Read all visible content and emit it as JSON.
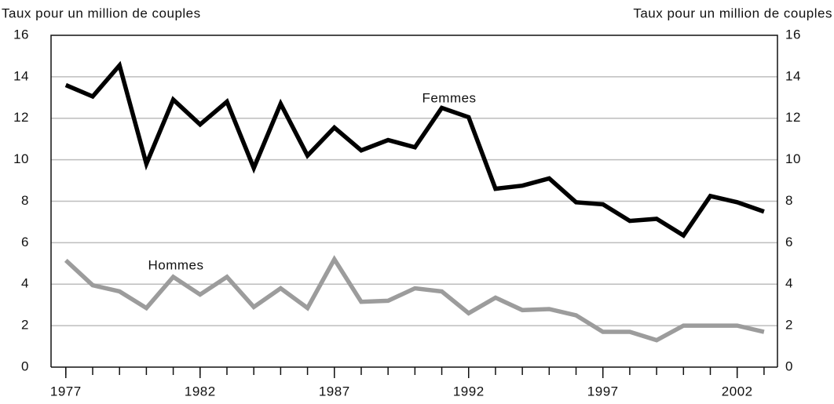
{
  "chart_data": {
    "type": "line",
    "y_label": "Taux pour un million de couples",
    "y2_label": "Taux pour un million de couples",
    "x": [
      1977,
      1978,
      1979,
      1980,
      1981,
      1982,
      1983,
      1984,
      1985,
      1986,
      1987,
      1988,
      1989,
      1990,
      1991,
      1992,
      1993,
      1994,
      1995,
      1996,
      1997,
      1998,
      1999,
      2000,
      2001,
      2002,
      2003
    ],
    "series": [
      {
        "name": "Femmes",
        "color": "#000000",
        "values": [
          13.6,
          13.05,
          14.55,
          9.8,
          12.9,
          11.7,
          12.8,
          9.6,
          12.7,
          10.2,
          11.55,
          10.45,
          10.95,
          10.6,
          12.5,
          12.05,
          8.6,
          8.75,
          9.1,
          7.95,
          7.85,
          7.05,
          7.15,
          6.35,
          8.25,
          7.95,
          7.5
        ]
      },
      {
        "name": "Hommes",
        "color": "#9c9c9c",
        "values": [
          5.15,
          3.95,
          3.65,
          2.85,
          4.35,
          3.5,
          4.35,
          2.9,
          3.8,
          2.85,
          5.2,
          3.15,
          3.2,
          3.8,
          3.65,
          2.6,
          3.35,
          2.75,
          2.8,
          2.5,
          1.7,
          1.7,
          1.3,
          2.0,
          2.0,
          2.0,
          1.7
        ]
      }
    ],
    "xlim": [
      1976.45,
      2003.5
    ],
    "xticks": [
      1977,
      1982,
      1987,
      1992,
      1997,
      2002
    ],
    "ylim": [
      0,
      16
    ],
    "yticks": [
      0,
      2,
      4,
      6,
      8,
      10,
      12,
      14,
      16
    ],
    "y2lim": [
      0,
      16
    ],
    "y2ticks": [
      0,
      2,
      4,
      6,
      8,
      10,
      12,
      14,
      16
    ],
    "grid": true
  }
}
